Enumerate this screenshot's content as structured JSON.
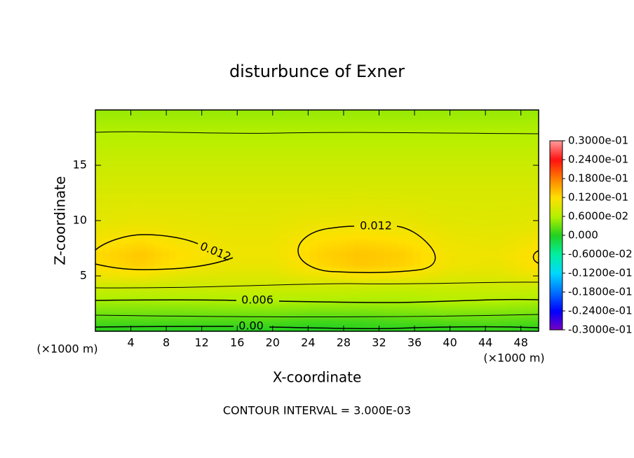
{
  "chart_data": {
    "type": "contour",
    "title": "disturbunce of Exner",
    "xlabel": "X-coordinate",
    "ylabel": "Z-coordinate",
    "x_unit_label": "(×1000 m)",
    "footer": "CONTOUR INTERVAL = 3.000E-03",
    "xlim": [
      0,
      50
    ],
    "ylim": [
      0,
      20
    ],
    "xticks": [
      4,
      8,
      12,
      16,
      20,
      24,
      28,
      32,
      36,
      40,
      44,
      48
    ],
    "yticks": [
      5,
      10,
      15
    ],
    "x": [
      0,
      5,
      10,
      15,
      20,
      25,
      30,
      35,
      40,
      45,
      50
    ],
    "z": [
      0,
      1,
      2,
      3,
      4,
      5,
      6,
      7,
      8,
      9,
      10,
      11,
      12,
      13,
      14,
      15,
      16,
      17,
      18,
      19,
      20
    ],
    "values": [
      [
        0.0,
        0.0,
        0.0,
        0.0,
        0.0,
        -0.0005,
        0.0,
        0.0,
        0.0,
        0.0005,
        0.0
      ],
      [
        0.002,
        0.002,
        0.002,
        0.002,
        0.002,
        0.0015,
        0.0015,
        0.002,
        0.0025,
        0.0025,
        0.002
      ],
      [
        0.004,
        0.004,
        0.004,
        0.0042,
        0.0043,
        0.004,
        0.004,
        0.0042,
        0.0045,
        0.0045,
        0.0042
      ],
      [
        0.0058,
        0.0058,
        0.006,
        0.0062,
        0.0063,
        0.0062,
        0.006,
        0.006,
        0.0065,
        0.0065,
        0.006
      ],
      [
        0.0078,
        0.0078,
        0.0078,
        0.008,
        0.008,
        0.008,
        0.0078,
        0.0076,
        0.0078,
        0.0078,
        0.0078
      ],
      [
        0.0105,
        0.011,
        0.0095,
        0.0093,
        0.0093,
        0.0105,
        0.0115,
        0.011,
        0.0095,
        0.0093,
        0.0105
      ],
      [
        0.012,
        0.0132,
        0.0115,
        0.0103,
        0.0103,
        0.0125,
        0.0135,
        0.0128,
        0.0108,
        0.0103,
        0.012
      ],
      [
        0.0123,
        0.0135,
        0.012,
        0.0107,
        0.0107,
        0.0128,
        0.0137,
        0.013,
        0.011,
        0.0106,
        0.0122
      ],
      [
        0.0115,
        0.0125,
        0.0112,
        0.0105,
        0.0105,
        0.0122,
        0.0128,
        0.0122,
        0.0106,
        0.0102,
        0.0112
      ],
      [
        0.0105,
        0.0112,
        0.0105,
        0.0102,
        0.0102,
        0.0112,
        0.0115,
        0.011,
        0.0101,
        0.0098,
        0.0103
      ],
      [
        0.0098,
        0.0102,
        0.01,
        0.0098,
        0.0098,
        0.0103,
        0.0105,
        0.0102,
        0.0096,
        0.0094,
        0.0097
      ],
      [
        0.0095,
        0.0097,
        0.0096,
        0.0095,
        0.0095,
        0.0097,
        0.0098,
        0.0097,
        0.0093,
        0.0092,
        0.0094
      ],
      [
        0.0092,
        0.0092,
        0.0092,
        0.0092,
        0.0092,
        0.0092,
        0.0093,
        0.0092,
        0.009,
        0.009,
        0.0091
      ],
      [
        0.0088,
        0.0088,
        0.0088,
        0.0088,
        0.0088,
        0.0088,
        0.0088,
        0.0088,
        0.0088,
        0.0088,
        0.0088
      ],
      [
        0.0083,
        0.0083,
        0.0083,
        0.0083,
        0.0083,
        0.0083,
        0.0083,
        0.0083,
        0.0083,
        0.0083,
        0.0083
      ],
      [
        0.0078,
        0.0078,
        0.0078,
        0.0078,
        0.0078,
        0.0078,
        0.0078,
        0.0078,
        0.0078,
        0.0078,
        0.0078
      ],
      [
        0.0072,
        0.0072,
        0.0072,
        0.0072,
        0.0072,
        0.0072,
        0.0072,
        0.0072,
        0.0072,
        0.0072,
        0.0072
      ],
      [
        0.0066,
        0.0066,
        0.0066,
        0.0066,
        0.0066,
        0.0066,
        0.0066,
        0.0066,
        0.0066,
        0.0066,
        0.0066
      ],
      [
        0.006,
        0.006,
        0.006,
        0.006,
        0.006,
        0.006,
        0.006,
        0.006,
        0.006,
        0.006,
        0.006
      ],
      [
        0.0054,
        0.0054,
        0.0054,
        0.0054,
        0.0054,
        0.0054,
        0.0054,
        0.0054,
        0.0054,
        0.0054,
        0.0054
      ],
      [
        0.0048,
        0.0048,
        0.0048,
        0.0048,
        0.0048,
        0.0048,
        0.0048,
        0.0048,
        0.0048,
        0.0048,
        0.0048
      ]
    ],
    "contours": [
      {
        "level": 0.012,
        "label": "0.012"
      },
      {
        "level": 0.006,
        "label": "0.006"
      },
      {
        "level": 0,
        "label": "0.00"
      },
      {
        "level": 0.009
      },
      {
        "level": 0.003
      }
    ],
    "colorbar": {
      "ticks": [
        {
          "value": -0.03,
          "label": "-0.3000e-01"
        },
        {
          "value": -0.024,
          "label": "-0.2400e-01"
        },
        {
          "value": -0.018,
          "label": "-0.1800e-01"
        },
        {
          "value": -0.012,
          "label": "-0.1200e-01"
        },
        {
          "value": -0.006,
          "label": "-0.6000e-02"
        },
        {
          "value": 0,
          "label": "0.000"
        },
        {
          "value": 0.006,
          "label": "0.6000e-02"
        },
        {
          "value": 0.012,
          "label": "0.1200e-01"
        },
        {
          "value": 0.018,
          "label": "0.1800e-01"
        },
        {
          "value": 0.024,
          "label": "0.2400e-01"
        },
        {
          "value": 0.03,
          "label": "0.3000e-01"
        }
      ],
      "colors": [
        "#7a00c0",
        "#0000ff",
        "#0070ff",
        "#00d8ff",
        "#00f0a0",
        "#22d020",
        "#b4f000",
        "#ffe000",
        "#ff8000",
        "#ff1010",
        "#ff9a9a"
      ]
    }
  }
}
